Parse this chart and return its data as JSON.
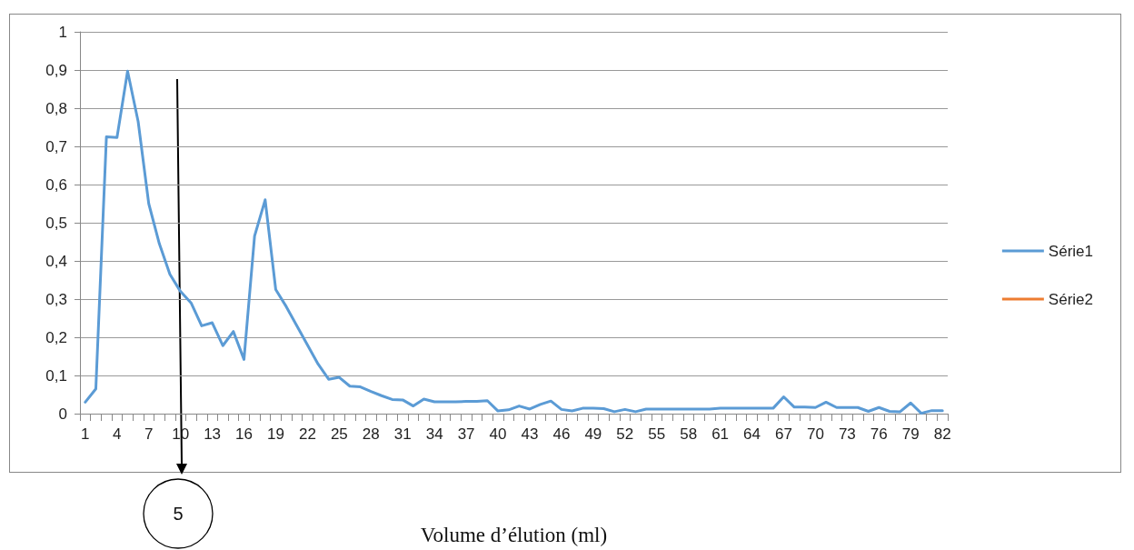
{
  "chart_data": {
    "type": "line",
    "xlabel": "Volume d’élution (ml)",
    "categories": [
      "1",
      null,
      null,
      "4",
      null,
      null,
      "7",
      null,
      null,
      "10",
      null,
      null,
      "13",
      null,
      null,
      "16",
      null,
      null,
      "19",
      null,
      null,
      "22",
      null,
      null,
      "25",
      null,
      null,
      "28",
      null,
      null,
      "31",
      null,
      null,
      "34",
      null,
      null,
      "37",
      null,
      null,
      "40",
      null,
      null,
      "43",
      null,
      null,
      "46",
      null,
      null,
      "49",
      null,
      null,
      "52",
      null,
      null,
      "55",
      null,
      null,
      "58",
      null,
      null,
      "61",
      null,
      null,
      "64",
      null,
      null,
      "67",
      null,
      null,
      "70",
      null,
      null,
      "73",
      null,
      null,
      "76",
      null,
      null,
      "79",
      null,
      null,
      "82"
    ],
    "series": [
      {
        "name": "Série1",
        "color": "#5b9bd5",
        "values": [
          0.03,
          0.065,
          0.725,
          0.723,
          0.897,
          0.765,
          0.55,
          0.445,
          0.365,
          0.32,
          0.29,
          0.23,
          0.238,
          0.178,
          0.215,
          0.142,
          0.465,
          0.56,
          0.325,
          0.28,
          0.23,
          0.18,
          0.13,
          0.09,
          0.095,
          0.072,
          0.07,
          0.058,
          0.047,
          0.037,
          0.036,
          0.02,
          0.038,
          0.031,
          0.031,
          0.031,
          0.032,
          0.032,
          0.034,
          0.007,
          0.01,
          0.02,
          0.012,
          0.024,
          0.033,
          0.011,
          0.007,
          0.014,
          0.014,
          0.013,
          0.005,
          0.011,
          0.005,
          0.012,
          0.012,
          0.012,
          0.012,
          0.012,
          0.012,
          0.012,
          0.014,
          0.014,
          0.014,
          0.014,
          0.014,
          0.014,
          0.044,
          0.017,
          0.017,
          0.016,
          0.03,
          0.016,
          0.016,
          0.016,
          0.006,
          0.016,
          0.006,
          0.005,
          0.028,
          0.001,
          0.008,
          0.008
        ]
      },
      {
        "name": "Série2",
        "color": "#ed7d31",
        "values": [
          null,
          null,
          null,
          null,
          null,
          null,
          null,
          null,
          null,
          null,
          null,
          null,
          null,
          null,
          null,
          null,
          null,
          null,
          null,
          null,
          null,
          null,
          null,
          null,
          null,
          null,
          null,
          null,
          null,
          null,
          null,
          null,
          null,
          null,
          null,
          null,
          null,
          null,
          null,
          null,
          null,
          null,
          null,
          null,
          null,
          null,
          null,
          null,
          null,
          null,
          null,
          null,
          null,
          null,
          null,
          null,
          null,
          null,
          null,
          null,
          null,
          null,
          null,
          null,
          null,
          null,
          null,
          null,
          null,
          null,
          null,
          null,
          null,
          null,
          null,
          null,
          null,
          null,
          null,
          null,
          null,
          null
        ]
      }
    ],
    "ylim": [
      0,
      1
    ],
    "yticks": [
      0,
      {
        "value": 0.1,
        "label": "0,1"
      },
      {
        "value": 0.2,
        "label": "0,2"
      },
      {
        "value": 0.3,
        "label": "0,3"
      },
      {
        "value": 0.4,
        "label": "0,4"
      },
      {
        "value": 0.5,
        "label": "0,5"
      },
      {
        "value": 0.6,
        "label": "0,6"
      },
      {
        "value": 0.7,
        "label": "0,7"
      },
      {
        "value": 0.8,
        "label": "0,8"
      },
      {
        "value": 0.9,
        "label": "0,9"
      },
      1
    ],
    "grid": "y",
    "legend": "right",
    "marker": "none",
    "line_style": "solid",
    "annotations": [
      "5"
    ]
  }
}
